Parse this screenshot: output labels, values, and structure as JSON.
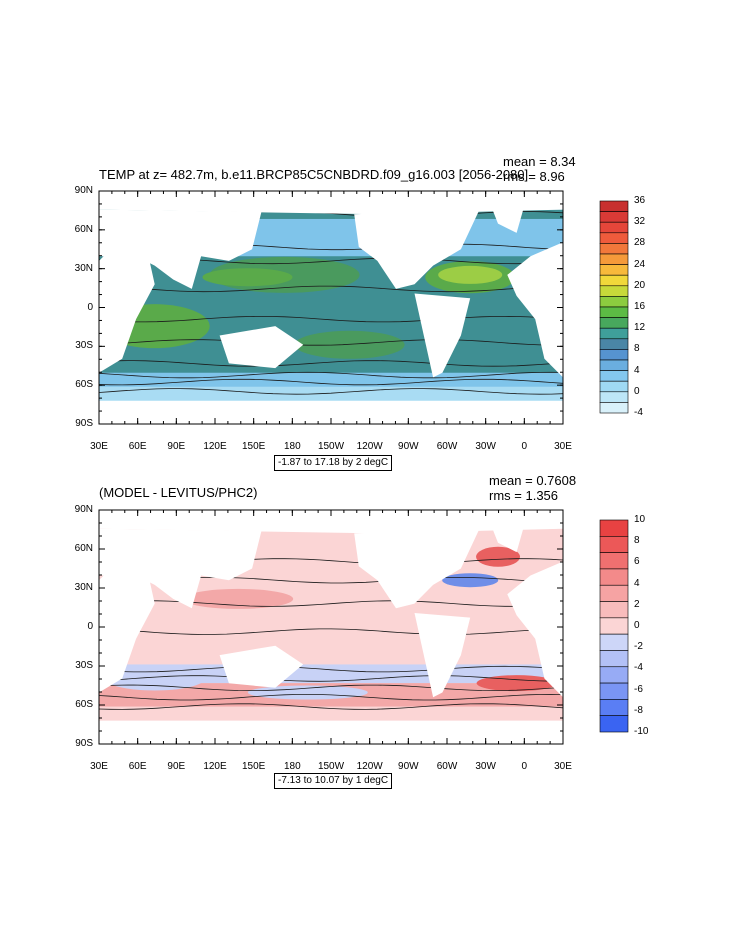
{
  "chart_data": [
    {
      "type": "heatmap",
      "title": "TEMP at z= 482.7m, b.e11.BRCP85C5CNBDRD.f09_g16.003 [2056-2080]",
      "stats": {
        "mean": "mean = 8.34",
        "rms": "rms = 8.96"
      },
      "x_ticks": [
        "30E",
        "60E",
        "90E",
        "120E",
        "150E",
        "180",
        "150W",
        "120W",
        "90W",
        "60W",
        "30W",
        "0",
        "30E"
      ],
      "y_ticks": [
        "90N",
        "60N",
        "30N",
        "0",
        "30S",
        "60S",
        "90S"
      ],
      "contour_info": "-1.87 to 17.18 by 2 degC",
      "colorbar": {
        "labels": [
          "36",
          "32",
          "28",
          "24",
          "20",
          "16",
          "12",
          "8",
          "4",
          "0",
          "-4"
        ],
        "colors": [
          "#d9f1fa",
          "#bde6f7",
          "#9fd9f3",
          "#83c7ee",
          "#6aaedf",
          "#5693d0",
          "#4a86a6",
          "#3f9f9a",
          "#48a85d",
          "#5cbb44",
          "#8ccc3f",
          "#c7d93a",
          "#f1d83a",
          "#f7b93b",
          "#f59a3a",
          "#f2783b",
          "#ef5b3c",
          "#e5463a",
          "#d93a36",
          "#c8302f"
        ]
      },
      "field_colors": {
        "ocean_base": "#3f8f93",
        "cold": "#7fc4ea",
        "polar": "#a9dcf3",
        "gyre": "#4a9a5e",
        "subtrop": "#5aaa4a",
        "warm": "#9ccd45"
      }
    },
    {
      "type": "heatmap",
      "title": "(MODEL - LEVITUS/PHC2)",
      "stats": {
        "mean": "mean = 0.7608",
        "rms": "rms = 1.356"
      },
      "x_ticks": [
        "30E",
        "60E",
        "90E",
        "120E",
        "150E",
        "180",
        "150W",
        "120W",
        "90W",
        "60W",
        "30W",
        "0",
        "30E"
      ],
      "y_ticks": [
        "90N",
        "60N",
        "30N",
        "0",
        "30S",
        "60S",
        "90S"
      ],
      "contour_info": "-7.13 to 10.07 by 1 degC",
      "colorbar": {
        "labels": [
          "10",
          "8",
          "6",
          "4",
          "2",
          "0",
          "-2",
          "-4",
          "-6",
          "-8",
          "-10"
        ],
        "colors": [
          "#3a64f2",
          "#5a7ef4",
          "#7a95f4",
          "#97abf5",
          "#b3c1f6",
          "#cdd6f8",
          "#fbd5d5",
          "#f8bcbc",
          "#f6a3a3",
          "#f38a8a",
          "#f07070",
          "#ec5858",
          "#e84242"
        ]
      },
      "field_colors": {
        "ocean_base": "#fbd5d5",
        "neg": "#c8d2f6",
        "pos": "#f3a8a8",
        "strong_pos": "#e86060",
        "strong_neg": "#6f8ee8"
      }
    }
  ]
}
